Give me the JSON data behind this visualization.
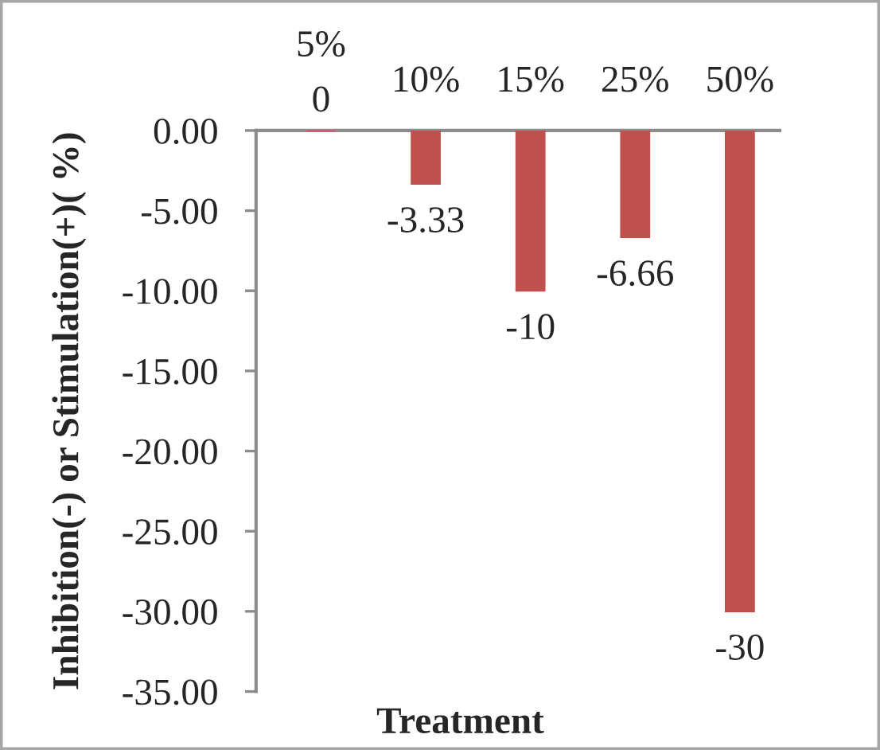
{
  "chart_data": {
    "type": "bar",
    "categories": [
      "5%",
      "10%",
      "15%",
      "25%",
      "50%"
    ],
    "values": [
      0,
      -3.33,
      -10,
      -6.66,
      -30
    ],
    "color": "#c0504d",
    "xlabel": "Treatment",
    "ylabel": "Inhibition(-) or Stimulation(+)( %)",
    "ylim": [
      -35,
      0
    ],
    "yticks": [
      {
        "value": 0,
        "label": "0.00"
      },
      {
        "value": -5,
        "label": "-5.00"
      },
      {
        "value": -10,
        "label": "-10.00"
      },
      {
        "value": -15,
        "label": "-15.00"
      },
      {
        "value": -20,
        "label": "-20.00"
      },
      {
        "value": -25,
        "label": "-25.00"
      },
      {
        "value": -30,
        "label": "-30.00"
      },
      {
        "value": -35,
        "label": "-35.00"
      }
    ],
    "data_labels": true,
    "grid": false,
    "legend": false
  }
}
